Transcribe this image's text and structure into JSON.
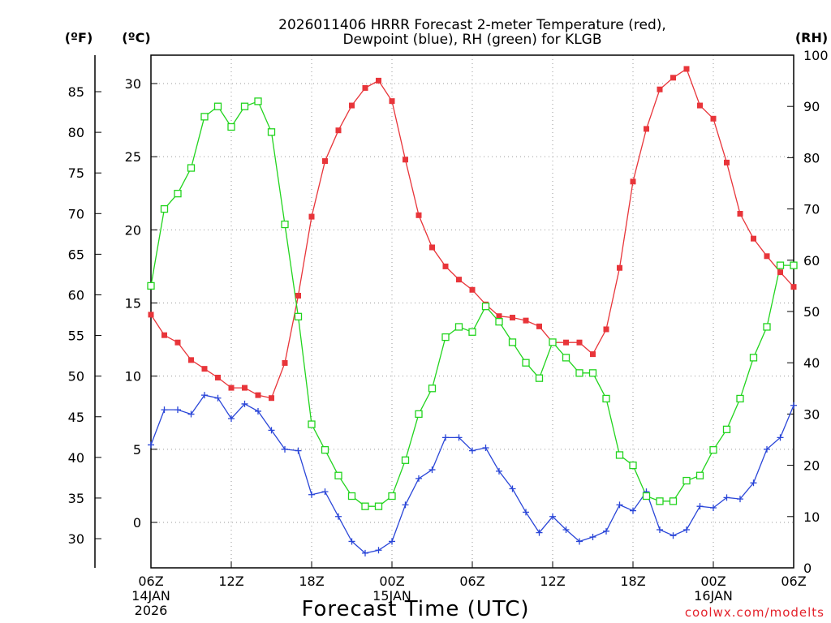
{
  "chart_data": {
    "type": "line",
    "title": [
      "2026011406 HRRR Forecast 2-meter Temperature (red),",
      "Dewpoint (blue), RH (green) for KLGB"
    ],
    "xlabel": "Forecast Time (UTC)",
    "credit": "coolwx.com/modelts",
    "units": {
      "fahrenheit": "(ºF)",
      "celsius": "(ºC)",
      "rh": "(RH)"
    },
    "x_hours": [
      0,
      48
    ],
    "ylim_celsius": [
      -3.1,
      32
    ],
    "ylim_rh": [
      0,
      100
    ],
    "x_ticks": [
      {
        "hour": 0,
        "lines": [
          "06Z",
          "14JAN",
          "2026"
        ]
      },
      {
        "hour": 6,
        "lines": [
          "12Z"
        ]
      },
      {
        "hour": 12,
        "lines": [
          "18Z"
        ]
      },
      {
        "hour": 18,
        "lines": [
          "00Z",
          "15JAN"
        ]
      },
      {
        "hour": 24,
        "lines": [
          "06Z"
        ]
      },
      {
        "hour": 30,
        "lines": [
          "12Z"
        ]
      },
      {
        "hour": 36,
        "lines": [
          "18Z"
        ]
      },
      {
        "hour": 42,
        "lines": [
          "00Z",
          "16JAN"
        ]
      },
      {
        "hour": 48,
        "lines": [
          "06Z"
        ]
      }
    ],
    "celsius_ticks": [
      0,
      5,
      10,
      15,
      20,
      25,
      30
    ],
    "fahrenheit_ticks": [
      30,
      35,
      40,
      45,
      50,
      55,
      60,
      65,
      70,
      75,
      80,
      85
    ],
    "rh_ticks": [
      0,
      10,
      20,
      30,
      40,
      50,
      60,
      70,
      80,
      90,
      100
    ],
    "grid": true,
    "series": [
      {
        "name": "Temperature",
        "axis": "celsius",
        "color": "#e8353a",
        "marker": "filled-square",
        "hours": [
          0,
          1,
          2,
          3,
          4,
          5,
          6,
          7,
          8,
          9,
          10,
          11,
          12,
          13,
          14,
          15,
          16,
          17,
          18,
          19,
          20,
          21,
          22,
          23,
          24,
          25,
          26,
          27,
          28,
          29,
          30,
          31,
          32,
          33,
          34,
          35,
          36,
          37,
          38,
          39,
          40,
          41,
          42,
          43,
          44,
          45,
          46,
          47,
          48
        ],
        "values": [
          14.2,
          12.8,
          12.3,
          11.1,
          10.5,
          9.9,
          9.2,
          9.2,
          8.7,
          8.5,
          10.9,
          15.5,
          20.9,
          24.7,
          26.8,
          28.5,
          29.7,
          30.2,
          28.8,
          24.8,
          21.0,
          18.8,
          17.5,
          16.6,
          15.9,
          14.9,
          14.1,
          14.0,
          13.8,
          13.4,
          12.3,
          12.3,
          12.3,
          11.5,
          13.2,
          17.4,
          23.3,
          26.9,
          29.6,
          30.4,
          31.0,
          28.5,
          27.6,
          24.6,
          21.1,
          19.4,
          18.2,
          17.1,
          16.1
        ]
      },
      {
        "name": "Dewpoint",
        "axis": "celsius",
        "color": "#2a46d8",
        "marker": "plus",
        "hours": [
          0,
          1,
          2,
          3,
          4,
          5,
          6,
          7,
          8,
          9,
          10,
          11,
          12,
          13,
          14,
          15,
          16,
          17,
          18,
          19,
          20,
          21,
          22,
          23,
          24,
          25,
          26,
          27,
          28,
          29,
          30,
          31,
          32,
          33,
          34,
          35,
          36,
          37,
          38,
          39,
          40,
          41,
          42,
          43,
          44,
          45,
          46,
          47,
          48
        ],
        "values": [
          5.3,
          7.7,
          7.7,
          7.4,
          8.7,
          8.5,
          7.1,
          8.1,
          7.6,
          6.3,
          5.0,
          4.9,
          1.9,
          2.1,
          0.4,
          -1.3,
          -2.1,
          -1.9,
          -1.3,
          1.2,
          3.0,
          3.6,
          5.8,
          5.8,
          4.9,
          5.1,
          3.5,
          2.3,
          0.7,
          -0.7,
          0.4,
          -0.5,
          -1.3,
          -1.0,
          -0.6,
          1.2,
          0.8,
          2.1,
          -0.5,
          -0.9,
          -0.5,
          1.1,
          1.0,
          1.7,
          1.6,
          2.7,
          5.0,
          5.8,
          8.0
        ]
      },
      {
        "name": "RH",
        "axis": "rh",
        "color": "#22d41e",
        "marker": "open-square",
        "hours": [
          0,
          1,
          2,
          3,
          4,
          5,
          6,
          7,
          8,
          9,
          10,
          11,
          12,
          13,
          14,
          15,
          16,
          17,
          18,
          19,
          20,
          21,
          22,
          23,
          24,
          25,
          26,
          27,
          28,
          29,
          30,
          31,
          32,
          33,
          34,
          35,
          36,
          37,
          38,
          39,
          40,
          41,
          42,
          43,
          44,
          45,
          46,
          47,
          48
        ],
        "values": [
          55,
          70,
          73,
          78,
          88,
          90,
          86,
          90,
          91,
          85,
          67,
          49,
          28,
          23,
          18,
          14,
          12,
          12,
          14,
          21,
          30,
          35,
          45,
          47,
          46,
          51,
          48,
          44,
          40,
          37,
          44,
          41,
          38,
          38,
          33,
          22,
          20,
          14,
          13,
          13,
          17,
          18,
          23,
          27,
          33,
          41,
          47,
          59,
          59
        ]
      }
    ]
  }
}
